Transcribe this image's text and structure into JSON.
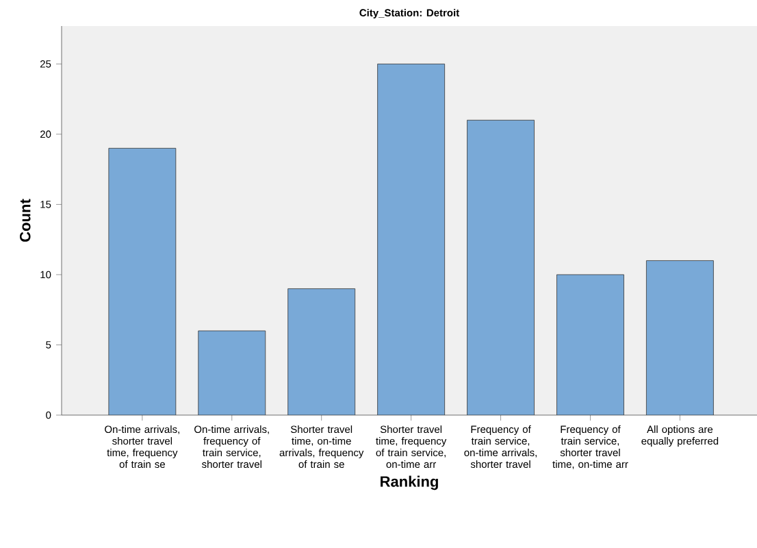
{
  "chart_data": {
    "type": "bar",
    "title": "City_Station: Detroit",
    "xlabel": "Ranking",
    "ylabel": "Count",
    "categories": [
      "On-time arrivals, shorter travel time, frequency of train se",
      "On-time arrivals, frequency of train service, shorter travel",
      "Shorter travel time, on-time arrivals, frequency of train se",
      "Shorter travel time, frequency of train service, on-time arr",
      "Frequency of train service, on-time arrivals, shorter travel",
      "Frequency of train service, shorter travel time, on-time arr",
      "All options are equally preferred"
    ],
    "values": [
      19,
      6,
      9,
      25,
      21,
      10,
      11
    ],
    "color": "#79a9d7",
    "ylim": [
      0,
      27.7
    ],
    "yticks": [
      0,
      5,
      10,
      15,
      20,
      25
    ]
  }
}
